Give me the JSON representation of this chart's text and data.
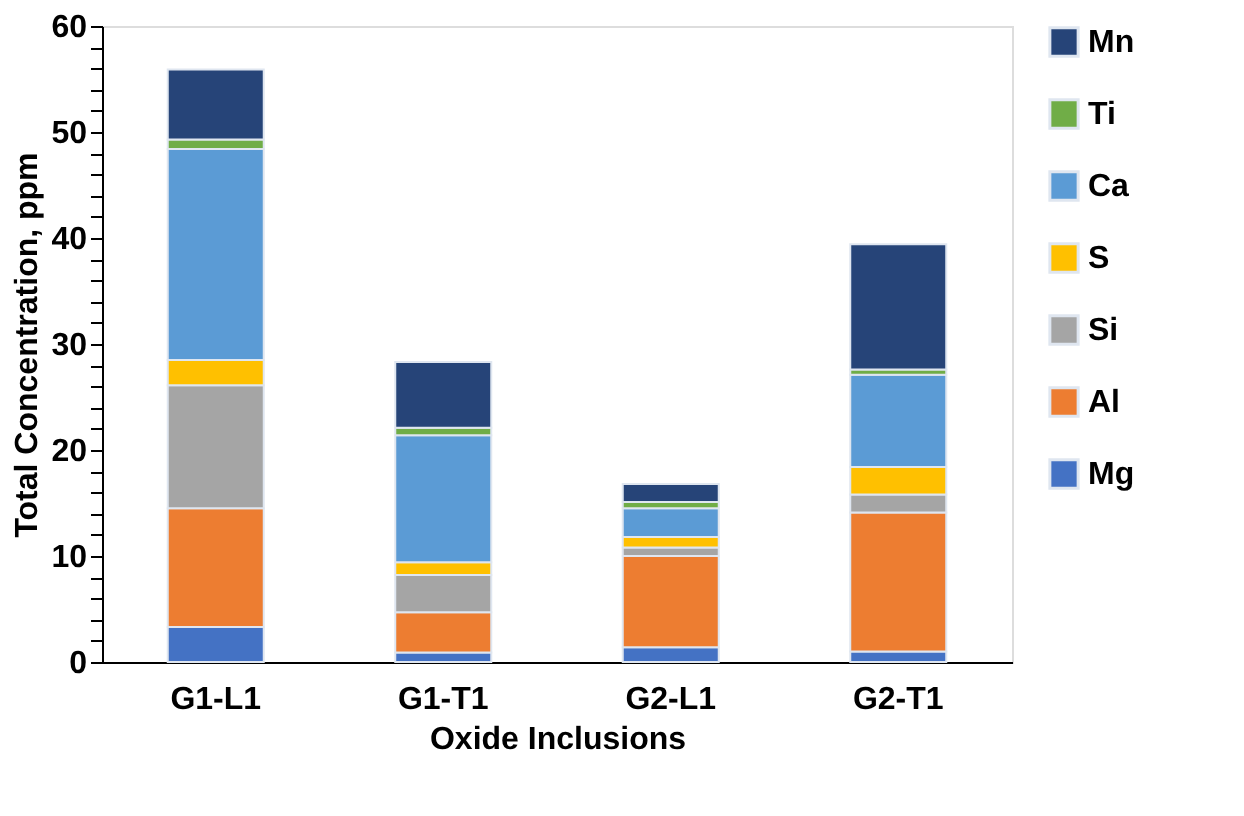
{
  "chart_data": {
    "type": "bar",
    "stacked": true,
    "xlabel": "Oxide  Inclusions",
    "ylabel": "Total Concentration, ppm",
    "categories": [
      "G1-L1",
      "G1-T1",
      "G2-L1",
      "G2-T1"
    ],
    "series": [
      {
        "name": "Mg",
        "color": "#4472c4",
        "values": [
          3.3,
          0.9,
          1.4,
          1.0
        ]
      },
      {
        "name": "Al",
        "color": "#ed7d31",
        "values": [
          11.2,
          3.8,
          8.6,
          13.1
        ]
      },
      {
        "name": "Si",
        "color": "#a5a5a5",
        "values": [
          11.6,
          3.5,
          0.8,
          1.7
        ]
      },
      {
        "name": "S",
        "color": "#ffc000",
        "values": [
          2.4,
          1.2,
          1.0,
          2.6
        ]
      },
      {
        "name": "Ca",
        "color": "#5b9bd5",
        "values": [
          19.9,
          12.0,
          2.7,
          8.7
        ]
      },
      {
        "name": "Ti",
        "color": "#70ad47",
        "values": [
          0.9,
          0.7,
          0.6,
          0.5
        ]
      },
      {
        "name": "Mn",
        "color": "#264478",
        "values": [
          6.6,
          6.2,
          1.7,
          11.8
        ]
      }
    ],
    "ylim": [
      0,
      60
    ],
    "yticks": [
      0,
      {
        "value": 2,
        "label": null
      },
      {
        "value": 4,
        "label": null
      },
      {
        "value": 6,
        "label": null
      },
      {
        "value": 8,
        "label": null
      },
      10,
      {
        "value": 12,
        "label": null
      },
      {
        "value": 14,
        "label": null
      },
      {
        "value": 16,
        "label": null
      },
      {
        "value": 18,
        "label": null
      },
      20,
      {
        "value": 22,
        "label": null
      },
      {
        "value": 24,
        "label": null
      },
      {
        "value": 26,
        "label": null
      },
      {
        "value": 28,
        "label": null
      },
      30,
      {
        "value": 32,
        "label": null
      },
      {
        "value": 34,
        "label": null
      },
      {
        "value": 36,
        "label": null
      },
      {
        "value": 38,
        "label": null
      },
      40,
      {
        "value": 42,
        "label": null
      },
      {
        "value": 44,
        "label": null
      },
      {
        "value": 46,
        "label": null
      },
      {
        "value": 48,
        "label": null
      },
      50,
      {
        "value": 52,
        "label": null
      },
      {
        "value": 54,
        "label": null
      },
      {
        "value": 56,
        "label": null
      },
      {
        "value": 58,
        "label": null
      },
      60
    ],
    "grid": false,
    "legend": "right"
  }
}
